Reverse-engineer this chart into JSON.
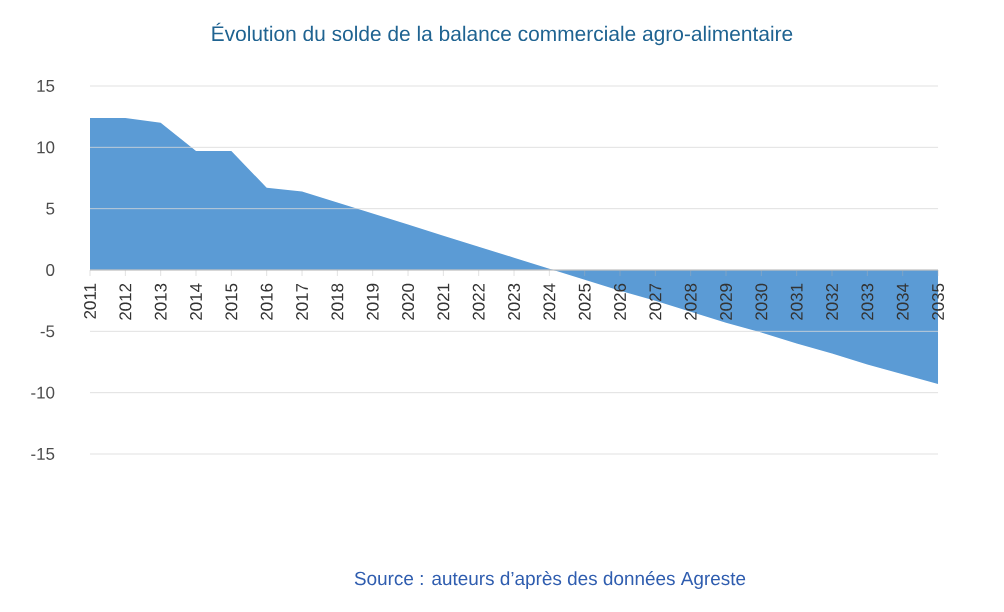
{
  "chart_data": {
    "type": "area",
    "title": "Évolution du solde de la balance commerciale agro-alimentaire",
    "categories": [
      "2011",
      "2012",
      "2013",
      "2014",
      "2015",
      "2016",
      "2017",
      "2018",
      "2019",
      "2020",
      "2021",
      "2022",
      "2023",
      "2024",
      "2025",
      "2026",
      "2027",
      "2028",
      "2029",
      "2030",
      "2031",
      "2032",
      "2033",
      "2034",
      "2035"
    ],
    "values": [
      12.4,
      12.4,
      12.0,
      9.7,
      9.7,
      6.7,
      6.4,
      5.5,
      4.6,
      3.7,
      2.8,
      1.9,
      1.0,
      0.1,
      -0.8,
      -1.7,
      -2.5,
      -3.4,
      -4.3,
      -5.1,
      -6.0,
      -6.8,
      -7.7,
      -8.5,
      -9.3
    ],
    "color": "#5b9bd5",
    "ylim": [
      -15,
      15
    ],
    "yticks": [
      -15,
      -10,
      -5,
      0,
      5,
      10,
      15
    ],
    "grid": "y",
    "annotations": [
      "Source : auteurs d’après des données Agreste"
    ]
  }
}
